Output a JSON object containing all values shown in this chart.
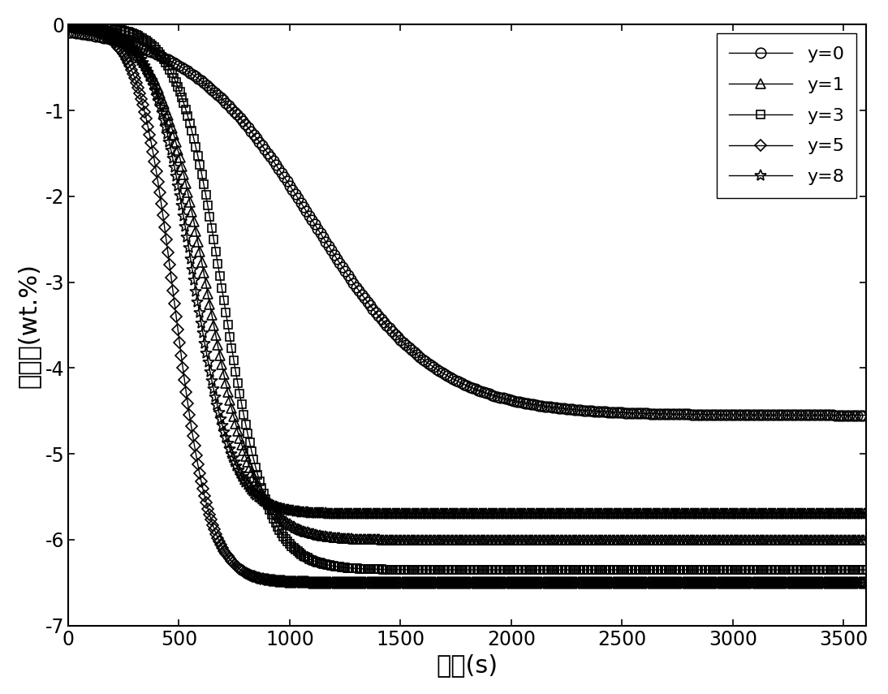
{
  "xlabel": "时间(s)",
  "ylabel": "放氢量(wt.%)",
  "xlim": [
    0,
    3600
  ],
  "ylim": [
    -7,
    0
  ],
  "xticks": [
    0,
    500,
    1000,
    1500,
    2000,
    2500,
    3000,
    3500
  ],
  "yticks": [
    0,
    -1,
    -2,
    -3,
    -4,
    -5,
    -6,
    -7
  ],
  "background_color": "#ffffff",
  "line_color": "#000000",
  "legend_fontsize": 16,
  "axis_fontsize": 22,
  "tick_fontsize": 17,
  "series": [
    {
      "label": "y=0",
      "marker": "o",
      "plateau": -4.55,
      "t_half": 1100,
      "k": 280,
      "every": 25,
      "ms": 9,
      "mew": 1.2
    },
    {
      "label": "y=1",
      "marker": "^",
      "plateau": -6.0,
      "t_half": 620,
      "k": 110,
      "every": 18,
      "ms": 8,
      "mew": 1.2
    },
    {
      "label": "y=3",
      "marker": "s",
      "plateau": -6.35,
      "t_half": 700,
      "k": 100,
      "every": 18,
      "ms": 7,
      "mew": 1.2
    },
    {
      "label": "y=5",
      "marker": "D",
      "plateau": -6.5,
      "t_half": 480,
      "k": 80,
      "every": 15,
      "ms": 7,
      "mew": 1.2
    },
    {
      "label": "y=8",
      "marker": "*",
      "plateau": -5.7,
      "t_half": 560,
      "k": 90,
      "every": 16,
      "ms": 10,
      "mew": 1.2
    }
  ]
}
